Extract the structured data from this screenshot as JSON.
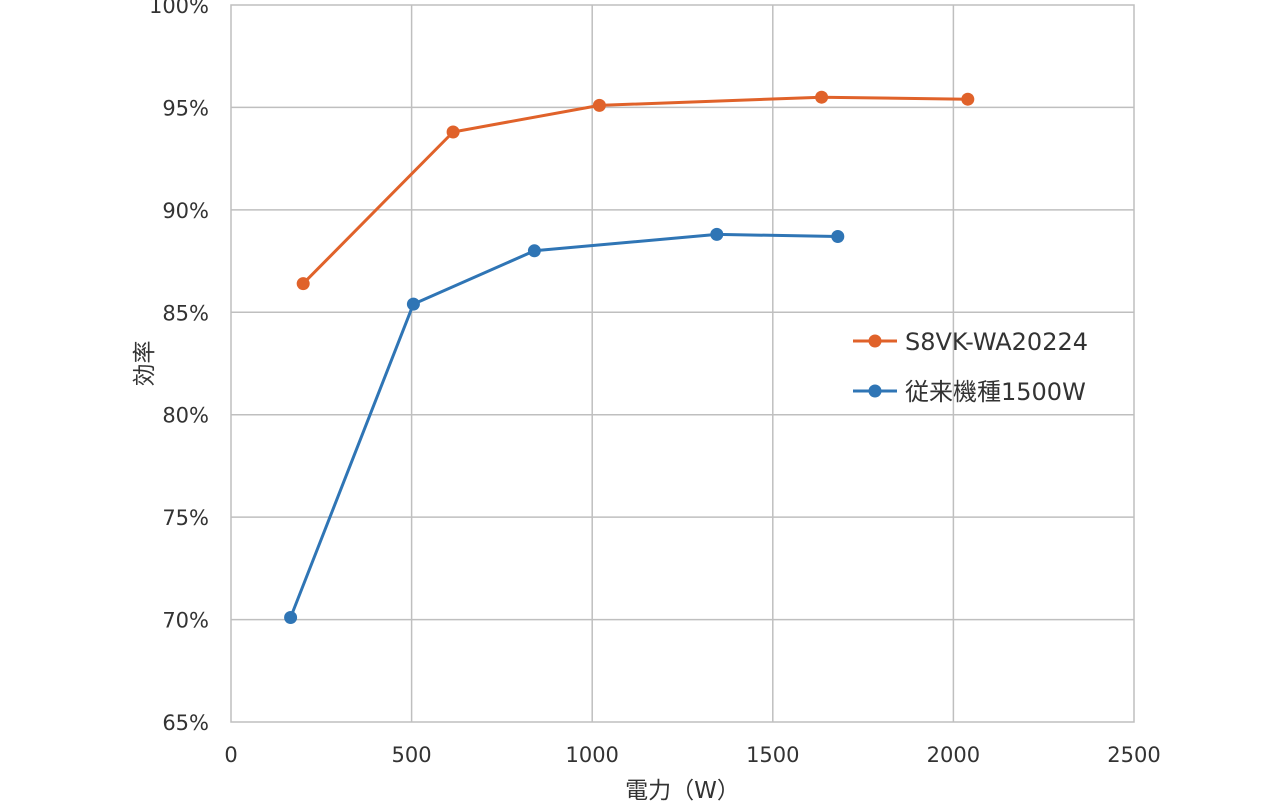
{
  "chart_data": {
    "type": "line",
    "title": "",
    "xlabel": "電力（W）",
    "ylabel": "効率",
    "xlim": [
      0,
      2500
    ],
    "ylim": [
      65,
      100
    ],
    "x_ticks": [
      "0",
      "500",
      "1000",
      "1500",
      "2000",
      "2500"
    ],
    "y_ticks": [
      "65%",
      "70%",
      "75%",
      "80%",
      "85%",
      "90%",
      "95%",
      "100%"
    ],
    "grid": true,
    "legend_position": "right",
    "series": [
      {
        "name": "S8VK-WA20224",
        "color": "#e0622a",
        "points": [
          [
            200,
            86.4
          ],
          [
            615,
            93.8
          ],
          [
            1020,
            95.1
          ],
          [
            1635,
            95.5
          ],
          [
            2040,
            95.4
          ]
        ]
      },
      {
        "name": "従来機種1500W",
        "color": "#2f75b5",
        "points": [
          [
            165,
            70.1
          ],
          [
            505,
            85.4
          ],
          [
            840,
            88.0
          ],
          [
            1345,
            88.8
          ],
          [
            1680,
            88.7
          ]
        ]
      }
    ]
  }
}
